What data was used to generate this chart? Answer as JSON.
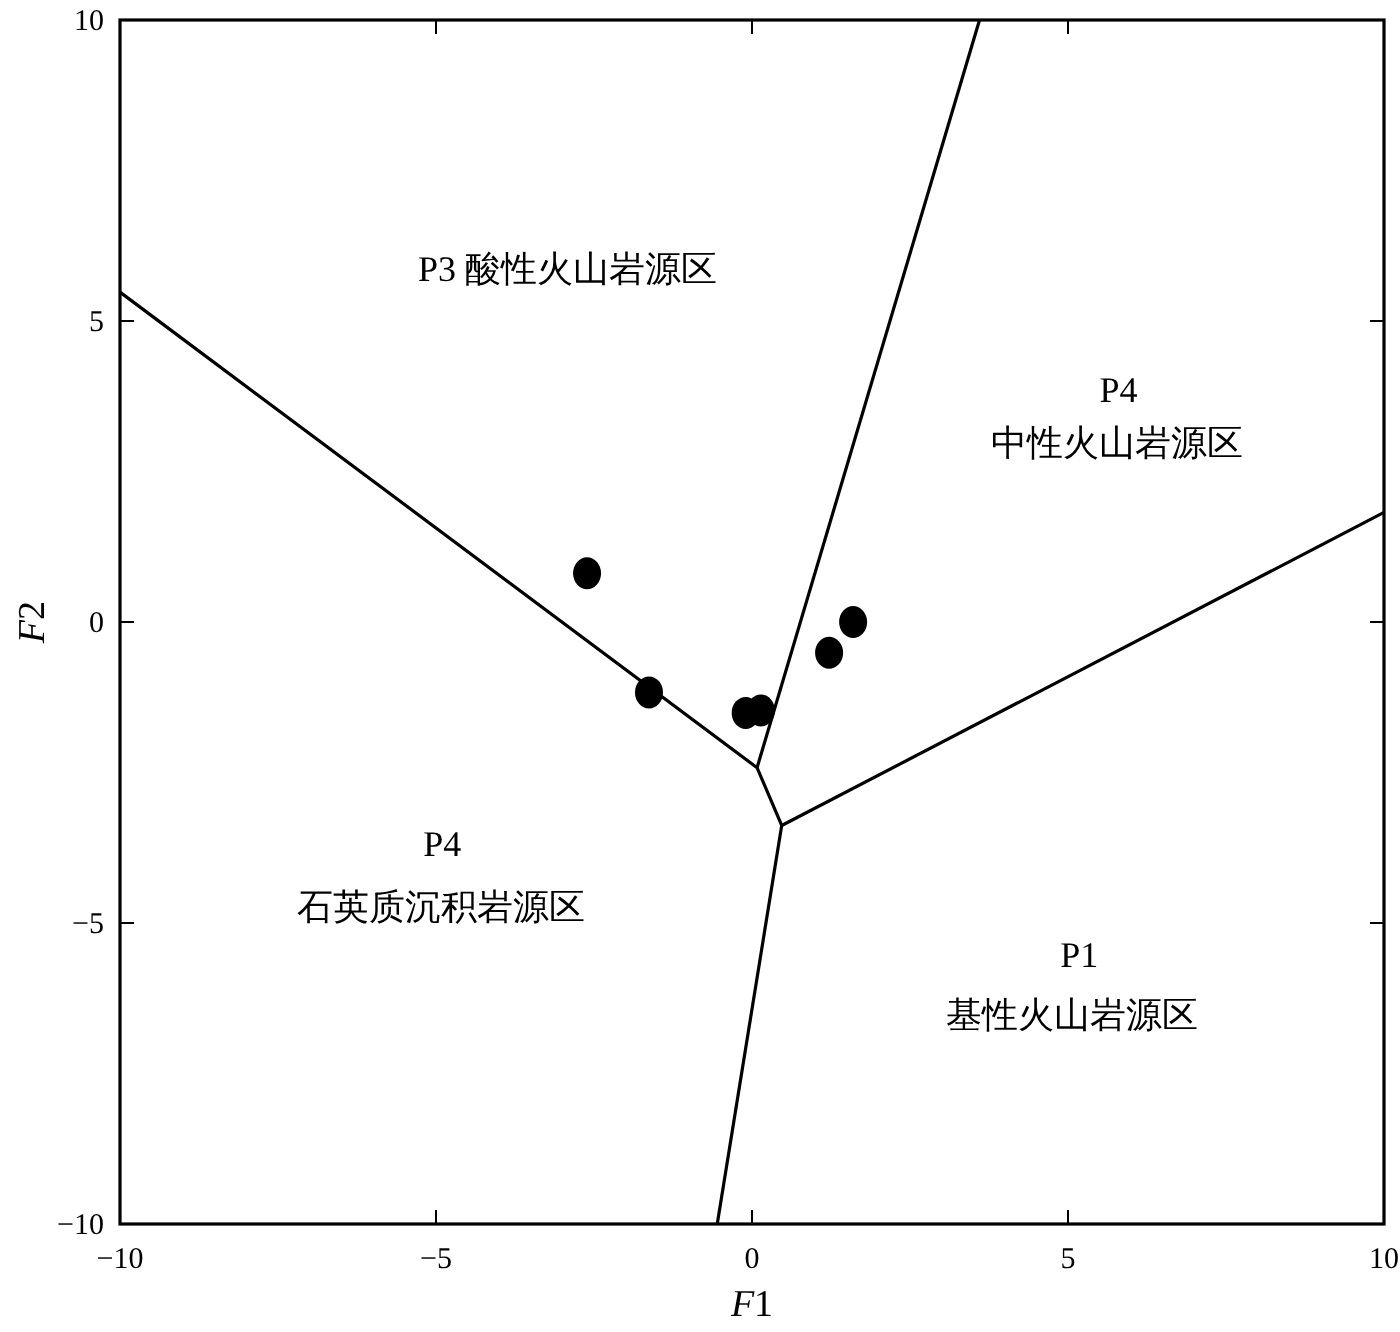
{
  "chart_data": {
    "type": "scatter",
    "xlabel": "F1",
    "ylabel": "F2",
    "xlim": [
      -10,
      10
    ],
    "ylim": [
      -10,
      10
    ],
    "xticks": [
      -10,
      -5,
      0,
      5,
      10
    ],
    "yticks": [
      -10,
      -5,
      0,
      5,
      10
    ],
    "grid": false,
    "series": [
      {
        "color": "#000000",
        "marker": "circle",
        "x": [
          -2.61,
          -1.63,
          -0.1,
          0.14,
          1.22,
          1.6
        ],
        "values": [
          0.81,
          -1.17,
          -1.51,
          -1.47,
          -0.51,
          0.0
        ]
      },
      {
        "type": "line",
        "color": "#000000",
        "marker": "none",
        "x": [
          -10,
          0.08,
          0.47,
          10
        ],
        "values": [
          5.48,
          -2.42,
          -3.38,
          1.82
        ]
      },
      {
        "type": "line",
        "color": "#000000",
        "marker": "none",
        "x": [
          0.08,
          3.6
        ],
        "values": [
          -2.42,
          10
        ]
      },
      {
        "type": "line",
        "color": "#000000",
        "marker": "none",
        "x": [
          0.47,
          -0.55
        ],
        "values": [
          -3.38,
          -10
        ]
      }
    ],
    "annotations": [
      "P3  酸性火山岩源区",
      "P4",
      "中性火山岩源区",
      "P4",
      "石英质沉积岩源区",
      "P1",
      "基性火山岩源区"
    ]
  }
}
